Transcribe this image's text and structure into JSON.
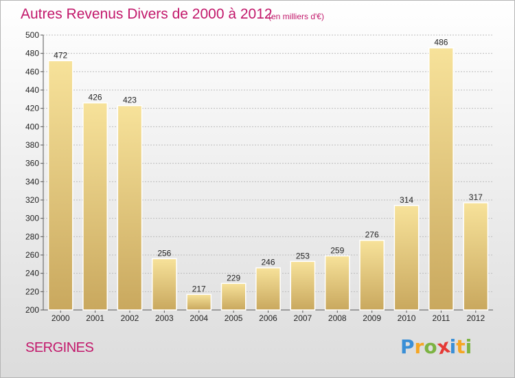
{
  "title": "Autres Revenus Divers de 2000 à 2012",
  "subtitle": "(en milliers d'€)",
  "city": "SERGINES",
  "logo": {
    "letters": [
      "P",
      "r",
      "o",
      "x",
      "i",
      "t",
      "i"
    ],
    "colors": [
      "#3a8fd6",
      "#f5a623",
      "#7cb342",
      "#e53935",
      "#3a8fd6",
      "#f5a623",
      "#7cb342"
    ]
  },
  "colors": {
    "bar_light": "#f7e29a",
    "bar_dark": "#c9a85e",
    "accent": "#c2186b",
    "grid": "#bdbdbd"
  },
  "chart_data": {
    "type": "bar",
    "title": "Autres Revenus Divers de 2000 à 2012",
    "categories": [
      "2000",
      "2001",
      "2002",
      "2003",
      "2004",
      "2005",
      "2006",
      "2007",
      "2008",
      "2009",
      "2010",
      "2011",
      "2012"
    ],
    "values": [
      472,
      426,
      423,
      256,
      217,
      229,
      246,
      253,
      259,
      276,
      314,
      486,
      317
    ],
    "ylim": [
      200,
      500
    ],
    "yticks": [
      200,
      220,
      240,
      260,
      280,
      300,
      320,
      340,
      360,
      380,
      400,
      420,
      440,
      460,
      480,
      500
    ],
    "grid": true,
    "data_labels": true
  }
}
